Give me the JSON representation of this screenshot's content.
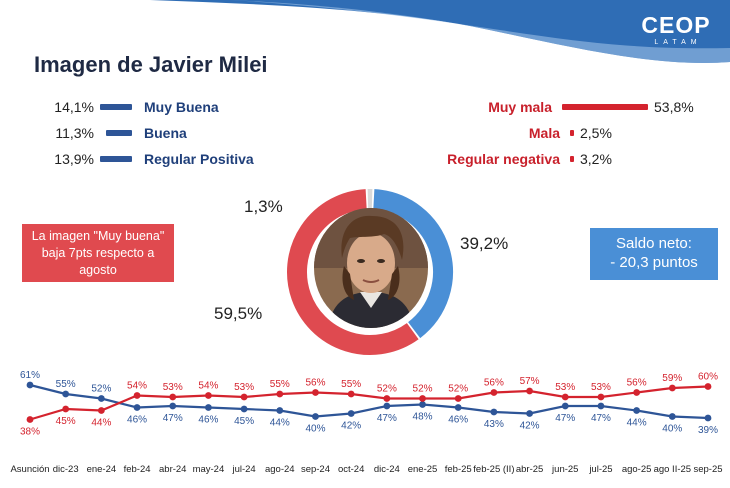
{
  "header": {
    "brand_name": "CEOP",
    "brand_sub": "LATAM",
    "title": "Imagen de Javier Milei"
  },
  "legend_positive": [
    {
      "pct": "14,1%",
      "label": "Muy Buena",
      "value": 14.1
    },
    {
      "pct": "11,3%",
      "label": "Buena",
      "value": 11.3
    },
    {
      "pct": "13,9%",
      "label": "Regular Positiva",
      "value": 13.9
    }
  ],
  "legend_negative": [
    {
      "pct": "53,8%",
      "label": "Muy mala",
      "value": 53.8
    },
    {
      "pct": "2,5%",
      "label": "Mala",
      "value": 2.5
    },
    {
      "pct": "3,2%",
      "label": "Regular negativa",
      "value": 3.2
    }
  ],
  "callouts": {
    "left_line1": "La imagen \"Muy buena\"",
    "left_line2": "baja 7pts respecto a",
    "left_line3": "agosto",
    "right_line1": "Saldo neto:",
    "right_line2": "- 20,3 puntos"
  },
  "donut": {
    "positive_label": "39,2%",
    "negative_label": "59,5%",
    "nsnc_label": "1,3%",
    "positive": 39.2,
    "negative": 59.5,
    "nsnc": 1.3,
    "colors": {
      "positive": "#4a8fd6",
      "negative": "#df4a50",
      "nsnc": "#d9d9d9"
    }
  },
  "colors": {
    "positive": "#2e5597",
    "negative": "#d4232e",
    "header": "#2f6db5"
  },
  "chart_data": {
    "type": "line",
    "categories": [
      "Asunción",
      "dic-23",
      "ene-24",
      "feb-24",
      "abr-24",
      "may-24",
      "jul-24",
      "ago-24",
      "sep-24",
      "oct-24",
      "dic-24",
      "ene-25",
      "feb-25",
      "feb-25 (II)",
      "abr-25",
      "jun-25",
      "jul-25",
      "ago-25",
      "ago II-25",
      "sep-25"
    ],
    "series": [
      {
        "name": "",
        "color": "#2e5597",
        "values": [
          61,
          55,
          52,
          46,
          47,
          46,
          45,
          44,
          40,
          42,
          47,
          48,
          46,
          43,
          42,
          47,
          47,
          44,
          40,
          39
        ]
      },
      {
        "name": "",
        "color": "#d4232e",
        "values": [
          38,
          45,
          44,
          54,
          53,
          54,
          53,
          55,
          56,
          55,
          52,
          52,
          52,
          56,
          57,
          53,
          53,
          56,
          59,
          60
        ]
      }
    ],
    "labels": {
      "blue": [
        "61%",
        "55%",
        "52%",
        "46%",
        "47%",
        "46%",
        "45%",
        "44%",
        "40%",
        "42%",
        "47%",
        "48%",
        "46%",
        "43%",
        "42%",
        "47%",
        "47%",
        "44%",
        "40%",
        "39%"
      ],
      "red": [
        "38%",
        "45%",
        "44%",
        "54%",
        "53%",
        "54%",
        "53%",
        "55%",
        "56%",
        "55%",
        "52%",
        "52%",
        "52%",
        "56%",
        "57%",
        "53%",
        "53%",
        "56%",
        "59%",
        "60%"
      ]
    },
    "blue_label_above": [
      true,
      true,
      true,
      false,
      false,
      false,
      false,
      false,
      false,
      false,
      false,
      false,
      false,
      false,
      false,
      false,
      false,
      false,
      false,
      false
    ],
    "red_label_above": [
      false,
      false,
      false,
      true,
      true,
      true,
      true,
      true,
      true,
      true,
      true,
      true,
      true,
      true,
      true,
      true,
      true,
      true,
      true,
      true
    ],
    "ylim": [
      35,
      63
    ],
    "grid": false
  }
}
